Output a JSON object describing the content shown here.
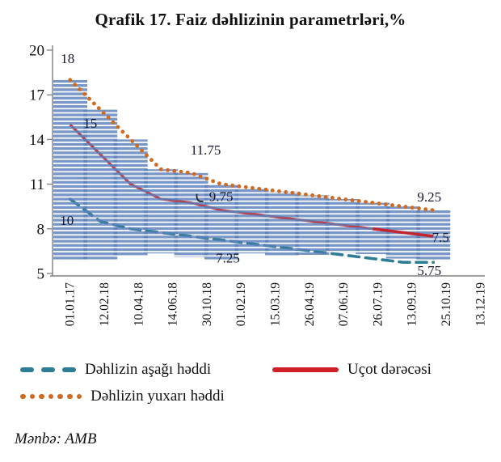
{
  "page": {
    "source": "Mənbə: AMB"
  },
  "y_axis_ticks": [
    20,
    17,
    14,
    11,
    8,
    5
  ],
  "legend": {
    "items": [
      {
        "label": "Dəhlizin aşağı həddi",
        "style": "dashed",
        "color": "#2e7d96"
      },
      {
        "label": "Uçot dərəcəsi",
        "style": "solid",
        "color": "#d01f26"
      },
      {
        "label": "Dəhlizin yuxarı həddi",
        "style": "dotted",
        "color": "#d06a21"
      }
    ]
  },
  "chart_data": {
    "type": "line",
    "title": "Qrafik 17. Faiz dəhlizinin parametrləri,%",
    "xlabel": "",
    "ylabel": "",
    "ylim": [
      5,
      20
    ],
    "grid": false,
    "legend_position": "bottom",
    "categories": [
      "01.01.17",
      "12.02.18",
      "10.04.18",
      "14.06.18",
      "30.10.18",
      "01.02.19",
      "15.03.19",
      "26.04.19",
      "07.06.19",
      "26.07.19",
      "13.09.19",
      "25.10.19",
      "13.12.19"
    ],
    "series": [
      {
        "name": "Dəhlizin yuxarı həddi",
        "role": "upper",
        "line_style": "dotted",
        "color": "#d06a21",
        "values": [
          18,
          16,
          14,
          12,
          11.75,
          11,
          10.75,
          10.5,
          10.25,
          10,
          9.75,
          9.5,
          9.25
        ]
      },
      {
        "name": "Uçot dərəcəsi",
        "role": "rate",
        "line_style": "solid",
        "color": "#c22730",
        "values": [
          15,
          13,
          11,
          10,
          9.75,
          9.25,
          9,
          8.75,
          8.5,
          8.25,
          8,
          7.75,
          7.5
        ]
      },
      {
        "name": "Dəhlizin aşağı həddi",
        "role": "lower",
        "line_style": "dashed",
        "color": "#2e7d96",
        "values": [
          10,
          8.5,
          8,
          7.75,
          7.5,
          7.25,
          7,
          6.75,
          6.5,
          6.25,
          6,
          5.75,
          5.75
        ]
      }
    ],
    "band": {
      "between": [
        "lower",
        "upper"
      ],
      "fill_color": "#5b80ba",
      "pattern": "horizontal-stripes"
    },
    "annotations": [
      {
        "text": "18",
        "category_index": 0,
        "series": "upper"
      },
      {
        "text": "15",
        "category_index": 0,
        "series": "rate"
      },
      {
        "text": "10",
        "category_index": 0,
        "series": "lower"
      },
      {
        "text": "11.75",
        "category_index": 4,
        "series": "upper"
      },
      {
        "text": "9.75",
        "category_index": 4,
        "series": "rate",
        "leader": true
      },
      {
        "text": "7.25",
        "category_index": 5,
        "series": "lower"
      },
      {
        "text": "9.25",
        "category_index": 12,
        "series": "upper"
      },
      {
        "text": "7.5",
        "category_index": 12,
        "series": "rate"
      },
      {
        "text": "5.75",
        "category_index": 12,
        "series": "lower"
      }
    ]
  }
}
